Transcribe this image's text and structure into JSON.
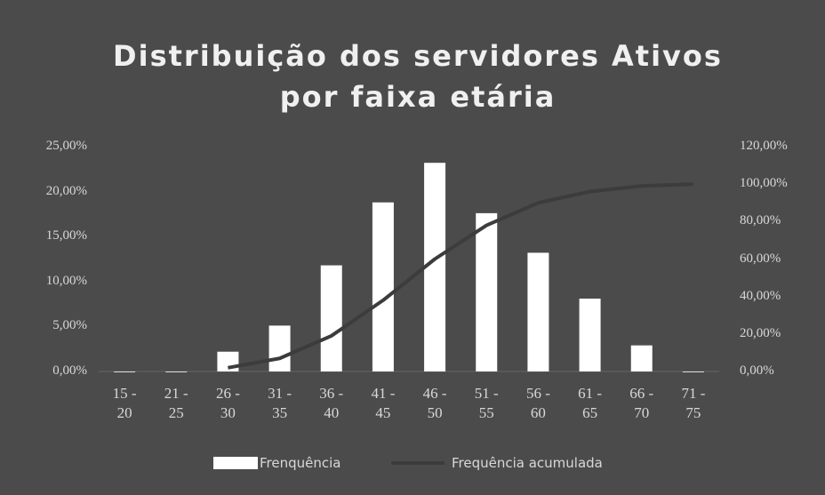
{
  "chart_data": {
    "type": "bar-line",
    "title": "Distribuição dos servidores Ativos por faixa etária",
    "categories": [
      "15 - 20",
      "21 - 25",
      "26 - 30",
      "31 - 35",
      "36 - 40",
      "41 - 45",
      "46 - 50",
      "51 - 55",
      "56 - 60",
      "61 - 65",
      "66 - 70",
      "71 - 75"
    ],
    "series": [
      {
        "name": "Frenquência",
        "color": "#ffffff",
        "type": "bar",
        "axis": "y",
        "values": [
          0,
          0,
          2.2,
          5.1,
          11.8,
          18.8,
          23.2,
          17.6,
          13.2,
          8.1,
          2.9,
          0
        ]
      },
      {
        "name": "Frequência acumulada",
        "color": "#3c3c3c",
        "type": "line",
        "axis": "y2",
        "values": [
          null,
          null,
          2,
          7,
          19,
          38,
          60,
          78,
          90,
          96,
          99,
          100
        ]
      }
    ],
    "ylim": [
      0,
      25
    ],
    "yticks": [
      {
        "value": 0,
        "label": "0,00%"
      },
      {
        "value": 5,
        "label": "5,00%"
      },
      {
        "value": 10,
        "label": "10,00%"
      },
      {
        "value": 15,
        "label": "15,00%"
      },
      {
        "value": 20,
        "label": "20,00%"
      },
      {
        "value": 25,
        "label": "25,00%"
      }
    ],
    "y2lim": [
      0,
      120
    ],
    "y2ticks": [
      {
        "value": 0,
        "label": "0,00%"
      },
      {
        "value": 20,
        "label": "20,00%"
      },
      {
        "value": 40,
        "label": "40,00%"
      },
      {
        "value": 60,
        "label": "60,00%"
      },
      {
        "value": 80,
        "label": "80,00%"
      },
      {
        "value": 100,
        "label": "100,00%"
      },
      {
        "value": 120,
        "label": "120,00%"
      }
    ],
    "grid": false
  }
}
